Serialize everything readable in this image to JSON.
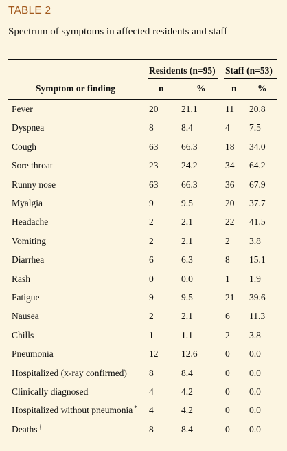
{
  "table_label": "TABLE 2",
  "caption": "Spectrum of symptoms in affected residents and staff",
  "header": {
    "group_residents": "Residents (n=95)",
    "group_staff": "Staff (n=53)",
    "col_symptom": "Symptom or finding",
    "col_res_n": "n",
    "col_res_pct": "%",
    "col_staff_n": "n",
    "col_staff_pct": "%"
  },
  "rows": [
    {
      "symptom": "Fever",
      "mark": "",
      "res_n": "20",
      "res_pct": "21.1",
      "staff_n": "11",
      "staff_pct": "20.8"
    },
    {
      "symptom": "Dyspnea",
      "mark": "",
      "res_n": "8",
      "res_pct": "8.4",
      "staff_n": "4",
      "staff_pct": "7.5"
    },
    {
      "symptom": "Cough",
      "mark": "",
      "res_n": "63",
      "res_pct": "66.3",
      "staff_n": "18",
      "staff_pct": "34.0"
    },
    {
      "symptom": "Sore throat",
      "mark": "",
      "res_n": "23",
      "res_pct": "24.2",
      "staff_n": "34",
      "staff_pct": "64.2"
    },
    {
      "symptom": "Runny nose",
      "mark": "",
      "res_n": "63",
      "res_pct": "66.3",
      "staff_n": "36",
      "staff_pct": "67.9"
    },
    {
      "symptom": "Myalgia",
      "mark": "",
      "res_n": "9",
      "res_pct": "9.5",
      "staff_n": "20",
      "staff_pct": "37.7"
    },
    {
      "symptom": "Headache",
      "mark": "",
      "res_n": "2",
      "res_pct": "2.1",
      "staff_n": "22",
      "staff_pct": "41.5"
    },
    {
      "symptom": "Vomiting",
      "mark": "",
      "res_n": "2",
      "res_pct": "2.1",
      "staff_n": "2",
      "staff_pct": "3.8"
    },
    {
      "symptom": "Diarrhea",
      "mark": "",
      "res_n": "6",
      "res_pct": "6.3",
      "staff_n": "8",
      "staff_pct": "15.1"
    },
    {
      "symptom": "Rash",
      "mark": "",
      "res_n": "0",
      "res_pct": "0.0",
      "staff_n": "1",
      "staff_pct": "1.9"
    },
    {
      "symptom": "Fatigue",
      "mark": "",
      "res_n": "9",
      "res_pct": "9.5",
      "staff_n": "21",
      "staff_pct": "39.6"
    },
    {
      "symptom": "Nausea",
      "mark": "",
      "res_n": "2",
      "res_pct": "2.1",
      "staff_n": "6",
      "staff_pct": "11.3"
    },
    {
      "symptom": "Chills",
      "mark": "",
      "res_n": "1",
      "res_pct": "1.1",
      "staff_n": "2",
      "staff_pct": "3.8"
    },
    {
      "symptom": "Pneumonia",
      "mark": "",
      "res_n": "12",
      "res_pct": "12.6",
      "staff_n": "0",
      "staff_pct": "0.0"
    },
    {
      "symptom": "Hospitalized (x-ray confirmed)",
      "mark": "",
      "res_n": "8",
      "res_pct": "8.4",
      "staff_n": "0",
      "staff_pct": "0.0"
    },
    {
      "symptom": "Clinically diagnosed",
      "mark": "",
      "res_n": "4",
      "res_pct": "4.2",
      "staff_n": "0",
      "staff_pct": "0.0"
    },
    {
      "symptom": "Hospitalized without pneumonia",
      "mark": "*",
      "res_n": "4",
      "res_pct": "4.2",
      "staff_n": "0",
      "staff_pct": "0.0"
    },
    {
      "symptom": "Deaths",
      "mark": "†",
      "res_n": "8",
      "res_pct": "8.4",
      "staff_n": "0",
      "staff_pct": "0.0"
    }
  ]
}
